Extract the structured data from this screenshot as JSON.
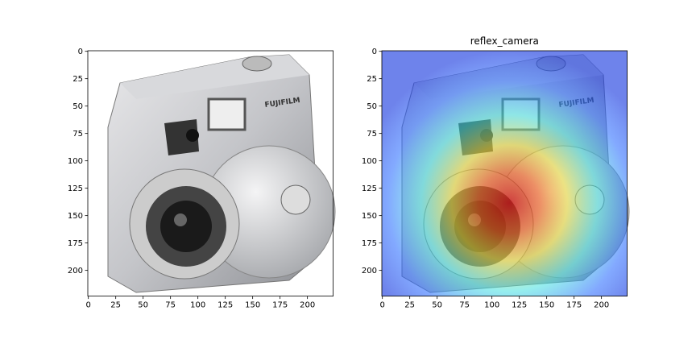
{
  "chart_data": [
    {
      "type": "image",
      "xlim": [
        -0.5,
        223.5
      ],
      "ylim": [
        223.5,
        -0.5
      ],
      "xticks": [
        0,
        25,
        50,
        75,
        100,
        125,
        150,
        175,
        200
      ],
      "yticks": [
        0,
        25,
        50,
        75,
        100,
        125,
        150,
        175,
        200
      ]
    },
    {
      "type": "image",
      "title": "reflex_camera",
      "xlim": [
        -0.5,
        223.5
      ],
      "ylim": [
        223.5,
        -0.5
      ],
      "xticks": [
        0,
        25,
        50,
        75,
        100,
        125,
        150,
        175,
        200
      ],
      "yticks": [
        0,
        25,
        50,
        75,
        100,
        125,
        150,
        175,
        200
      ],
      "overlay": "heatmap"
    }
  ]
}
